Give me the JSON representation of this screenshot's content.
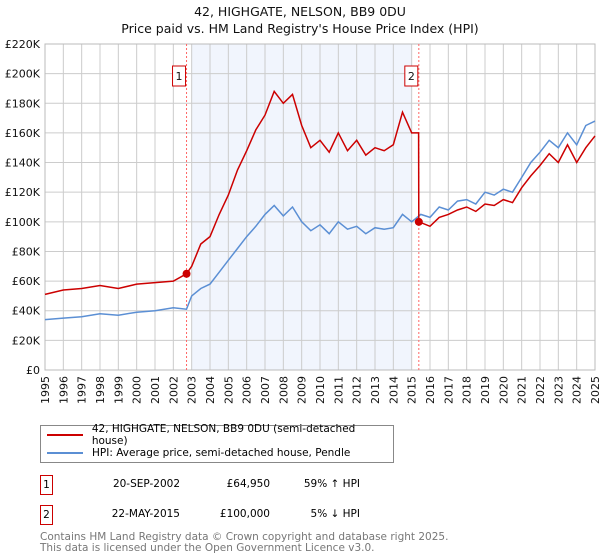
{
  "chart_data": {
    "type": "line",
    "title": "42, HIGHGATE, NELSON, BB9 0DU",
    "subtitle": "Price paid vs. HM Land Registry's House Price Index (HPI)",
    "xlabel": "",
    "ylabel": "",
    "xlim": [
      1995,
      2025
    ],
    "ylim": [
      0,
      220000
    ],
    "x_ticks": [
      "1995",
      "1996",
      "1997",
      "1998",
      "1999",
      "2000",
      "2001",
      "2002",
      "2003",
      "2004",
      "2005",
      "2006",
      "2007",
      "2008",
      "2009",
      "2010",
      "2011",
      "2012",
      "2013",
      "2014",
      "2015",
      "2016",
      "2017",
      "2018",
      "2019",
      "2020",
      "2021",
      "2022",
      "2023",
      "2024",
      "2025"
    ],
    "y_ticks": [
      {
        "v": 0,
        "label": "£0"
      },
      {
        "v": 20000,
        "label": "£20K"
      },
      {
        "v": 40000,
        "label": "£40K"
      },
      {
        "v": 60000,
        "label": "£60K"
      },
      {
        "v": 80000,
        "label": "£80K"
      },
      {
        "v": 100000,
        "label": "£100K"
      },
      {
        "v": 120000,
        "label": "£120K"
      },
      {
        "v": 140000,
        "label": "£140K"
      },
      {
        "v": 160000,
        "label": "£160K"
      },
      {
        "v": 180000,
        "label": "£180K"
      },
      {
        "v": 200000,
        "label": "£200K"
      },
      {
        "v": 220000,
        "label": "£220K"
      }
    ],
    "grid": true,
    "shaded_range": [
      2003,
      2015
    ],
    "series": [
      {
        "name": "42, HIGHGATE, NELSON, BB9 0DU (semi-detached house)",
        "color": "#cc0000",
        "x": [
          1995,
          1996,
          1997,
          1998,
          1999,
          2000,
          2001,
          2002,
          2002.72,
          2003,
          2003.5,
          2004,
          2004.5,
          2005,
          2005.5,
          2006,
          2006.5,
          2007,
          2007.5,
          2008,
          2008.5,
          2009,
          2009.5,
          2010,
          2010.5,
          2011,
          2011.5,
          2012,
          2012.5,
          2013,
          2013.5,
          2014,
          2014.5,
          2015,
          2015.38,
          2015.39,
          2016,
          2016.5,
          2017,
          2017.5,
          2018,
          2018.5,
          2019,
          2019.5,
          2020,
          2020.5,
          2021,
          2021.5,
          2022,
          2022.5,
          2023,
          2023.5,
          2024,
          2024.5,
          2025
        ],
        "y": [
          51000,
          54000,
          55000,
          57000,
          55000,
          58000,
          59000,
          60000,
          64950,
          70000,
          85000,
          90000,
          105000,
          118000,
          135000,
          148000,
          162000,
          172000,
          188000,
          180000,
          186000,
          165000,
          150000,
          155000,
          147000,
          160000,
          148000,
          155000,
          145000,
          150000,
          148000,
          152000,
          174000,
          160000,
          160000,
          100000,
          97000,
          103000,
          105000,
          108000,
          110000,
          107000,
          112000,
          111000,
          115000,
          113000,
          123000,
          131000,
          138000,
          146000,
          140000,
          152000,
          140000,
          150000,
          158000
        ]
      },
      {
        "name": "HPI: Average price, semi-detached house, Pendle",
        "color": "#5b8fd4",
        "x": [
          1995,
          1996,
          1997,
          1998,
          1999,
          2000,
          2001,
          2002,
          2002.72,
          2003,
          2003.5,
          2004,
          2004.5,
          2005,
          2005.5,
          2006,
          2006.5,
          2007,
          2007.5,
          2008,
          2008.5,
          2009,
          2009.5,
          2010,
          2010.5,
          2011,
          2011.5,
          2012,
          2012.5,
          2013,
          2013.5,
          2014,
          2014.5,
          2015,
          2015.5,
          2016,
          2016.5,
          2017,
          2017.5,
          2018,
          2018.5,
          2019,
          2019.5,
          2020,
          2020.5,
          2021,
          2021.5,
          2022,
          2022.5,
          2023,
          2023.5,
          2024,
          2024.5,
          2025
        ],
        "y": [
          34000,
          35000,
          36000,
          38000,
          37000,
          39000,
          40000,
          42000,
          41000,
          50000,
          55000,
          58000,
          66000,
          74000,
          82000,
          90000,
          97000,
          105000,
          111000,
          104000,
          110000,
          100000,
          94000,
          98000,
          92000,
          100000,
          95000,
          97000,
          92000,
          96000,
          95000,
          96000,
          105000,
          100000,
          105000,
          103000,
          110000,
          108000,
          114000,
          115000,
          112000,
          120000,
          118000,
          122000,
          120000,
          130000,
          140000,
          147000,
          155000,
          150000,
          160000,
          152000,
          165000,
          168000
        ]
      }
    ],
    "annotations": [
      {
        "label": "1",
        "x": 2002.72,
        "y": 64950
      },
      {
        "label": "2",
        "x": 2015.39,
        "y": 100000
      }
    ]
  },
  "legend": {
    "red_label": "42, HIGHGATE, NELSON, BB9 0DU (semi-detached house)",
    "blue_label": "HPI: Average price, semi-detached house, Pendle"
  },
  "sales": [
    {
      "num": "1",
      "date": "20-SEP-2002",
      "price": "£64,950",
      "hpi": "59% ↑ HPI"
    },
    {
      "num": "2",
      "date": "22-MAY-2015",
      "price": "£100,000",
      "hpi": "5% ↓ HPI"
    }
  ],
  "footer": {
    "line1": "Contains HM Land Registry data © Crown copyright and database right 2025.",
    "line2": "This data is licensed under the Open Government Licence v3.0."
  }
}
